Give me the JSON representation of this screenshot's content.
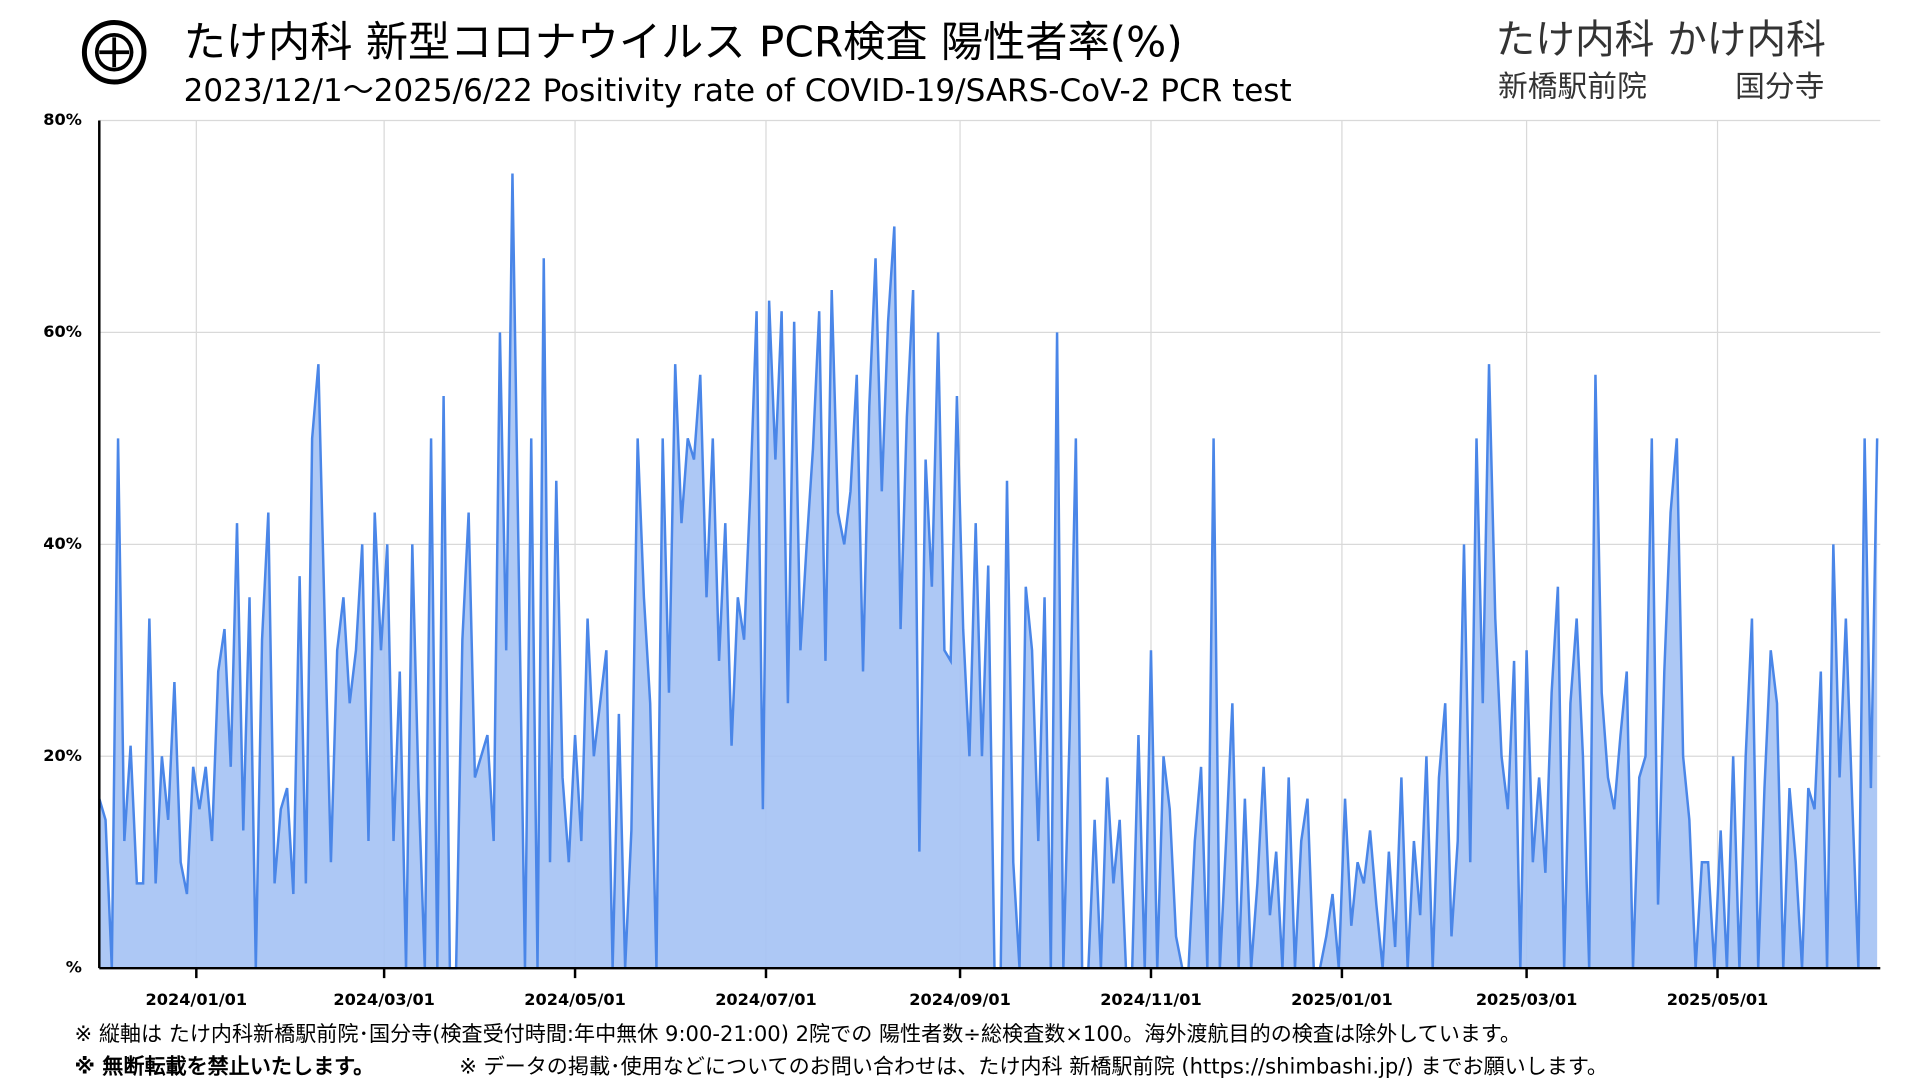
{
  "chart_data": {
    "type": "area",
    "title": "たけ内科 新型コロナウイルス PCR検査 陽性者率(%)",
    "subtitle": "2023/12/1～2025/6/22  Positivity rate of COVID-19/SARS-CoV-2 PCR test",
    "clinic_names": "たけ内科 かけ内科",
    "clinic_branches": [
      "新橋駅前院",
      "国分寺"
    ],
    "notes": [
      "※ 縦軸は たけ内科新橋駅前院･国分寺(検査受付時間:年中無休 9:00-21:00) 2院での 陽性者数÷総検査数×100。海外渡航目的の検査は除外しています。",
      "※ 無断転載を禁止いたします。",
      "※ データの掲載･使用などについてのお問い合わせは、たけ内科 新橋駅前院 (https://shimbashi.jp/) までお願いします。"
    ],
    "color": "#4a86e8",
    "fill_color": "#a4c2f4",
    "grid": true,
    "ylim": [
      0,
      80
    ],
    "yticks": [
      {
        "value": 0,
        "label": "%"
      },
      {
        "value": 20,
        "label": "20%"
      },
      {
        "value": 40,
        "label": "40%"
      },
      {
        "value": 60,
        "label": "60%"
      },
      {
        "value": 80,
        "label": "80%"
      }
    ],
    "xlim": [
      "2023/12/01",
      "2025/06/22"
    ],
    "xticks": [
      "2024/01/01",
      "2024/03/01",
      "2024/05/01",
      "2024/07/01",
      "2024/09/01",
      "2024/11/01",
      "2025/01/01",
      "2025/03/01",
      "2025/05/01"
    ],
    "x": [
      "2023/12/01",
      "2023/12/03",
      "2023/12/05",
      "2023/12/07",
      "2023/12/09",
      "2023/12/11",
      "2023/12/13",
      "2023/12/15",
      "2023/12/17",
      "2023/12/19",
      "2023/12/21",
      "2023/12/23",
      "2023/12/25",
      "2023/12/27",
      "2023/12/29",
      "2023/12/31",
      "2024/01/02",
      "2024/01/04",
      "2024/01/06",
      "2024/01/08",
      "2024/01/10",
      "2024/01/12",
      "2024/01/14",
      "2024/01/16",
      "2024/01/18",
      "2024/01/20",
      "2024/01/22",
      "2024/01/24",
      "2024/01/26",
      "2024/01/28",
      "2024/01/30",
      "2024/02/01",
      "2024/02/03",
      "2024/02/05",
      "2024/02/07",
      "2024/02/09",
      "2024/02/11",
      "2024/02/13",
      "2024/02/15",
      "2024/02/17",
      "2024/02/19",
      "2024/02/21",
      "2024/02/23",
      "2024/02/25",
      "2024/02/27",
      "2024/02/29",
      "2024/03/02",
      "2024/03/04",
      "2024/03/06",
      "2024/03/08",
      "2024/03/10",
      "2024/03/12",
      "2024/03/14",
      "2024/03/16",
      "2024/03/18",
      "2024/03/20",
      "2024/03/22",
      "2024/03/24",
      "2024/03/26",
      "2024/03/28",
      "2024/03/30",
      "2024/04/01",
      "2024/04/03",
      "2024/04/05",
      "2024/04/07",
      "2024/04/09",
      "2024/04/11",
      "2024/04/13",
      "2024/04/15",
      "2024/04/17",
      "2024/04/19",
      "2024/04/21",
      "2024/04/23",
      "2024/04/25",
      "2024/04/27",
      "2024/04/29",
      "2024/05/01",
      "2024/05/03",
      "2024/05/05",
      "2024/05/07",
      "2024/05/09",
      "2024/05/11",
      "2024/05/13",
      "2024/05/15",
      "2024/05/17",
      "2024/05/19",
      "2024/05/21",
      "2024/05/23",
      "2024/05/25",
      "2024/05/27",
      "2024/05/29",
      "2024/05/31",
      "2024/06/02",
      "2024/06/04",
      "2024/06/06",
      "2024/06/08",
      "2024/06/10",
      "2024/06/12",
      "2024/06/14",
      "2024/06/16",
      "2024/06/18",
      "2024/06/20",
      "2024/06/22",
      "2024/06/24",
      "2024/06/26",
      "2024/06/28",
      "2024/06/30",
      "2024/07/02",
      "2024/07/04",
      "2024/07/06",
      "2024/07/08",
      "2024/07/10",
      "2024/07/12",
      "2024/07/14",
      "2024/07/16",
      "2024/07/18",
      "2024/07/20",
      "2024/07/22",
      "2024/07/24",
      "2024/07/26",
      "2024/07/28",
      "2024/07/30",
      "2024/08/01",
      "2024/08/03",
      "2024/08/05",
      "2024/08/07",
      "2024/08/09",
      "2024/08/11",
      "2024/08/13",
      "2024/08/15",
      "2024/08/17",
      "2024/08/19",
      "2024/08/21",
      "2024/08/23",
      "2024/08/25",
      "2024/08/27",
      "2024/08/29",
      "2024/08/31",
      "2024/09/02",
      "2024/09/04",
      "2024/09/06",
      "2024/09/08",
      "2024/09/10",
      "2024/09/12",
      "2024/09/14",
      "2024/09/16",
      "2024/09/18",
      "2024/09/20",
      "2024/09/22",
      "2024/09/24",
      "2024/09/26",
      "2024/09/28",
      "2024/09/30",
      "2024/10/02",
      "2024/10/04",
      "2024/10/06",
      "2024/10/08",
      "2024/10/10",
      "2024/10/12",
      "2024/10/14",
      "2024/10/16",
      "2024/10/18",
      "2024/10/20",
      "2024/10/22",
      "2024/10/24",
      "2024/10/26",
      "2024/10/28",
      "2024/10/30",
      "2024/11/01",
      "2024/11/03",
      "2024/11/05",
      "2024/11/07",
      "2024/11/09",
      "2024/11/11",
      "2024/11/13",
      "2024/11/15",
      "2024/11/17",
      "2024/11/19",
      "2024/11/21",
      "2024/11/23",
      "2024/11/25",
      "2024/11/27",
      "2024/11/29",
      "2024/12/01",
      "2024/12/03",
      "2024/12/05",
      "2024/12/07",
      "2024/12/09",
      "2024/12/11",
      "2024/12/13",
      "2024/12/15",
      "2024/12/17",
      "2024/12/19",
      "2024/12/21",
      "2024/12/23",
      "2024/12/25",
      "2024/12/27",
      "2024/12/29",
      "2024/12/31",
      "2025/01/02",
      "2025/01/04",
      "2025/01/06",
      "2025/01/08",
      "2025/01/10",
      "2025/01/12",
      "2025/01/14",
      "2025/01/16",
      "2025/01/18",
      "2025/01/20",
      "2025/01/22",
      "2025/01/24",
      "2025/01/26",
      "2025/01/28",
      "2025/01/30",
      "2025/02/01",
      "2025/02/03",
      "2025/02/05",
      "2025/02/07",
      "2025/02/09",
      "2025/02/11",
      "2025/02/13",
      "2025/02/15",
      "2025/02/17",
      "2025/02/19",
      "2025/02/21",
      "2025/02/23",
      "2025/02/25",
      "2025/02/27",
      "2025/03/01",
      "2025/03/03",
      "2025/03/05",
      "2025/03/07",
      "2025/03/09",
      "2025/03/11",
      "2025/03/13",
      "2025/03/15",
      "2025/03/17",
      "2025/03/19",
      "2025/03/21",
      "2025/03/23",
      "2025/03/25",
      "2025/03/27",
      "2025/03/29",
      "2025/03/31",
      "2025/04/02",
      "2025/04/04",
      "2025/04/06",
      "2025/04/08",
      "2025/04/10",
      "2025/04/12",
      "2025/04/14",
      "2025/04/16",
      "2025/04/18",
      "2025/04/20",
      "2025/04/22",
      "2025/04/24",
      "2025/04/26",
      "2025/04/28",
      "2025/04/30",
      "2025/05/02",
      "2025/05/04",
      "2025/05/06",
      "2025/05/08",
      "2025/05/10",
      "2025/05/12",
      "2025/05/14",
      "2025/05/16",
      "2025/05/18",
      "2025/05/20",
      "2025/05/22",
      "2025/05/24",
      "2025/05/26",
      "2025/05/28",
      "2025/05/30",
      "2025/06/01",
      "2025/06/03",
      "2025/06/05",
      "2025/06/07",
      "2025/06/09",
      "2025/06/11",
      "2025/06/13",
      "2025/06/15",
      "2025/06/17",
      "2025/06/19",
      "2025/06/21"
    ],
    "values": [
      16,
      14,
      0,
      50,
      12,
      21,
      8,
      8,
      33,
      8,
      20,
      14,
      27,
      10,
      7,
      19,
      15,
      19,
      12,
      28,
      32,
      19,
      42,
      13,
      35,
      0,
      31,
      43,
      8,
      15,
      17,
      7,
      37,
      8,
      50,
      57,
      33,
      10,
      30,
      35,
      25,
      30,
      40,
      12,
      43,
      30,
      40,
      12,
      28,
      0,
      40,
      17,
      0,
      50,
      0,
      54,
      0,
      0,
      31,
      43,
      18,
      20,
      22,
      12,
      60,
      30,
      75,
      38,
      0,
      50,
      0,
      67,
      10,
      46,
      18,
      10,
      22,
      12,
      33,
      20,
      25,
      30,
      0,
      24,
      0,
      13,
      50,
      35,
      25,
      0,
      50,
      26,
      57,
      42,
      50,
      48,
      56,
      35,
      50,
      29,
      42,
      21,
      35,
      31,
      45,
      62,
      15,
      63,
      48,
      62,
      25,
      61,
      30,
      40,
      49,
      62,
      29,
      64,
      43,
      40,
      45,
      56,
      28,
      53,
      67,
      45,
      61,
      70,
      32,
      52,
      64,
      11,
      48,
      36,
      60,
      30,
      29,
      54,
      32,
      20,
      42,
      20,
      38,
      0,
      0,
      46,
      10,
      0,
      36,
      30,
      12,
      35,
      0,
      60,
      0,
      22,
      50,
      0,
      0,
      14,
      0,
      18,
      8,
      14,
      0,
      0,
      22,
      0,
      30,
      0,
      20,
      15,
      3,
      0,
      0,
      12,
      19,
      0,
      50,
      0,
      12,
      25,
      0,
      16,
      0,
      8,
      19,
      5,
      11,
      0,
      18,
      0,
      12,
      16,
      0,
      0,
      3,
      7,
      0,
      16,
      4,
      10,
      8,
      13,
      6,
      0,
      11,
      2,
      18,
      0,
      12,
      5,
      20,
      0,
      18,
      25,
      3,
      12,
      40,
      10,
      50,
      25,
      57,
      33,
      20,
      15,
      29,
      0,
      30,
      10,
      18,
      9,
      26,
      36,
      0,
      25,
      33,
      20,
      0,
      56,
      26,
      18,
      15,
      22,
      28,
      0,
      18,
      20,
      50,
      6,
      28,
      43,
      50,
      20,
      14,
      0,
      10,
      10,
      0,
      13,
      0,
      20,
      0,
      20,
      33,
      0,
      17,
      30,
      25,
      0,
      17,
      10,
      0,
      17,
      15,
      28,
      0,
      40,
      18,
      33,
      16,
      0,
      50,
      17,
      50
    ]
  }
}
